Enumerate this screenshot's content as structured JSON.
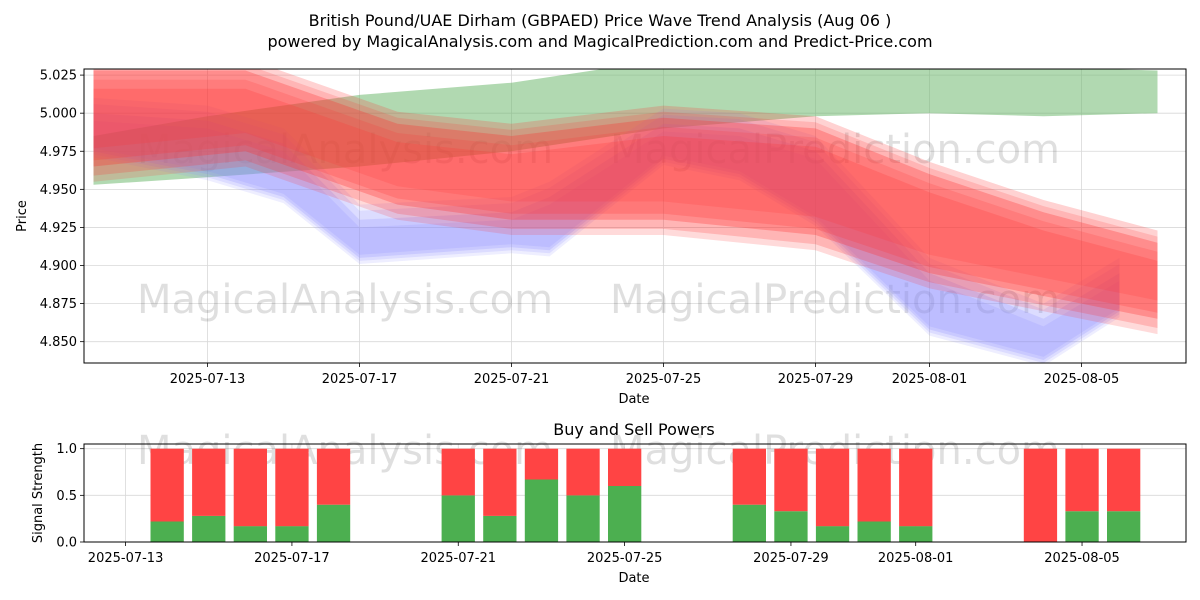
{
  "title_line1": "British Pound/UAE Dirham (GBPAED) Price Wave Trend Analysis (Aug 06 )",
  "title_line2": "powered by MagicalAnalysis.com and MagicalPrediction.com and Predict-Price.com",
  "watermark_1": "MagicalAnalysis.com",
  "watermark_2": "MagicalPrediction.com",
  "colors": {
    "green": "#4caf50",
    "red": "#ff4444",
    "blue": "#8888ff",
    "band_red": "#ff3333",
    "band_green": "#64b464"
  },
  "chart_data": [
    {
      "type": "area",
      "title": "",
      "xlabel": "Date",
      "ylabel": "Price",
      "xlim": [
        "2025-07-09T18:00",
        "2025-08-07T18:00"
      ],
      "ylim": [
        4.836,
        5.029
      ],
      "x_ticks": [
        "2025-07-13",
        "2025-07-17",
        "2025-07-21",
        "2025-07-25",
        "2025-07-29",
        "2025-08-01",
        "2025-08-05"
      ],
      "y_ticks": [
        4.85,
        4.875,
        4.9,
        4.925,
        4.95,
        4.975,
        5.0,
        5.025
      ],
      "grid": true,
      "series": [
        {
          "color": "green",
          "x": [
            "2025-07-10",
            "2025-07-13",
            "2025-07-17",
            "2025-07-21",
            "2025-07-25",
            "2025-07-29",
            "2025-08-01",
            "2025-08-04",
            "2025-08-07"
          ],
          "upper": [
            4.985,
            4.998,
            5.012,
            5.02,
            5.035,
            5.035,
            5.035,
            5.03,
            5.028
          ],
          "lower": [
            4.953,
            4.958,
            4.965,
            4.975,
            4.99,
            4.998,
            5.0,
            4.998,
            5.0
          ]
        },
        {
          "color": "blue",
          "x": [
            "2025-07-10",
            "2025-07-13",
            "2025-07-15",
            "2025-07-17",
            "2025-07-21",
            "2025-07-22",
            "2025-07-25",
            "2025-07-27",
            "2025-07-29",
            "2025-08-01",
            "2025-08-04",
            "2025-08-06"
          ],
          "upper": [
            5.0,
            4.995,
            4.98,
            4.93,
            4.935,
            4.945,
            4.993,
            4.99,
            4.975,
            4.895,
            4.865,
            4.895
          ],
          "lower": [
            4.975,
            4.96,
            4.945,
            4.905,
            4.912,
            4.91,
            4.97,
            4.96,
            4.93,
            4.858,
            4.838,
            4.87
          ]
        },
        {
          "color": "red",
          "x": [
            "2025-07-10",
            "2025-07-14",
            "2025-07-18",
            "2025-07-21",
            "2025-07-25",
            "2025-07-29",
            "2025-08-01",
            "2025-08-04",
            "2025-08-07"
          ],
          "upper": [
            5.028,
            5.028,
            4.993,
            4.985,
            4.997,
            4.99,
            4.96,
            4.935,
            4.915
          ],
          "lower": [
            4.965,
            4.975,
            4.94,
            4.93,
            4.93,
            4.92,
            4.895,
            4.88,
            4.865
          ]
        }
      ]
    },
    {
      "type": "bar",
      "title": "Buy and Sell Powers",
      "xlabel": "Date",
      "ylabel": "Signal Strength",
      "xlim": [
        "2025-07-12",
        "2025-08-07T12:00"
      ],
      "ylim": [
        0,
        1.05
      ],
      "x_ticks": [
        "2025-07-13",
        "2025-07-17",
        "2025-07-21",
        "2025-07-25",
        "2025-07-29",
        "2025-08-01",
        "2025-08-05"
      ],
      "y_ticks": [
        "0.0",
        "0.5",
        "1.0"
      ],
      "grid": true,
      "stacked": true,
      "dates": [
        "2025-07-14",
        "2025-07-15",
        "2025-07-16",
        "2025-07-17",
        "2025-07-18",
        "2025-07-21",
        "2025-07-22",
        "2025-07-23",
        "2025-07-24",
        "2025-07-25",
        "2025-07-28",
        "2025-07-29",
        "2025-07-30",
        "2025-07-31",
        "2025-08-01",
        "2025-08-04",
        "2025-08-05",
        "2025-08-06"
      ],
      "buy": [
        0.22,
        0.28,
        0.17,
        0.17,
        0.4,
        0.5,
        0.28,
        0.67,
        0.5,
        0.6,
        0.4,
        0.33,
        0.17,
        0.22,
        0.17,
        0.0,
        0.33,
        0.33
      ],
      "sell": [
        0.78,
        0.72,
        0.83,
        0.83,
        0.6,
        0.5,
        0.72,
        0.33,
        0.5,
        0.4,
        0.6,
        0.67,
        0.83,
        0.78,
        0.83,
        1.0,
        0.67,
        0.67
      ]
    }
  ]
}
